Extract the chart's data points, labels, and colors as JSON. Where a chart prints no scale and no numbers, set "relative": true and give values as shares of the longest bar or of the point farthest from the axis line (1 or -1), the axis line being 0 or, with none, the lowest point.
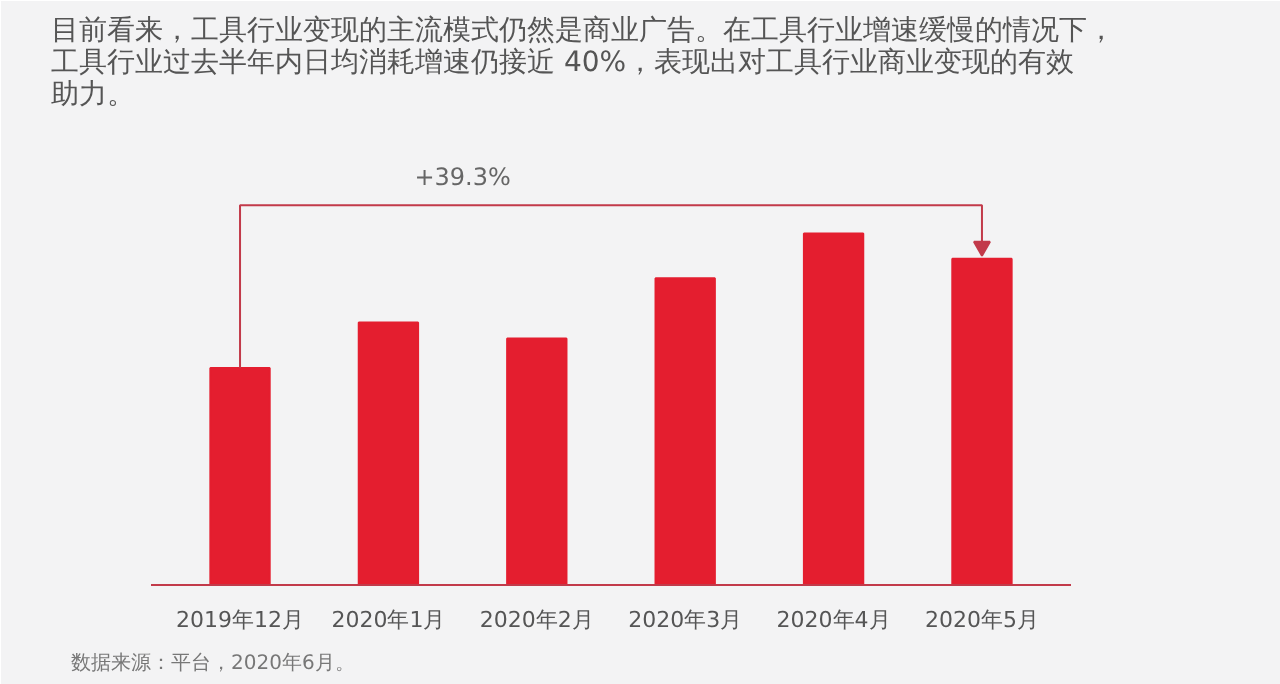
{
  "chart_data": {
    "type": "bar",
    "relative": true,
    "title": "目前看来，工具行业变现的主流模式仍然是商业广告。在工具行业增速缓慢的情况下，工具行业过去半年内日均消耗增速仍接近 40%，表现出对工具行业商业变现的有效助力。",
    "categories": [
      "2019年12月",
      "2020年1月",
      "2020年2月",
      "2020年3月",
      "2020年4月",
      "2020年5月"
    ],
    "values": [
      0.617,
      0.747,
      0.701,
      0.873,
      1,
      0.928
    ],
    "color": "#e41e2f",
    "annotations": [
      "+39.3%",
      "数据来源：平台，2020年6月。"
    ],
    "grid": false
  }
}
